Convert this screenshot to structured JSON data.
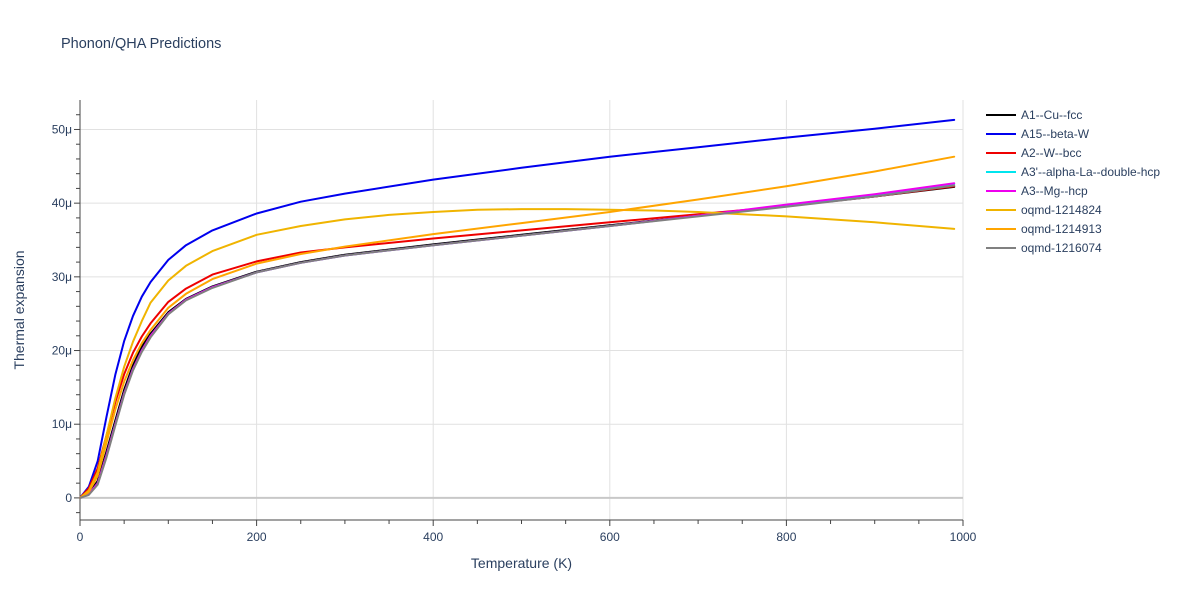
{
  "chart_data": {
    "type": "line",
    "title": "Phonon/QHA Predictions",
    "xlabel": "Temperature (K)",
    "ylabel": "Thermal expansion",
    "xlim": [
      0,
      1000
    ],
    "ylim": [
      -3e-06,
      5.4e-05
    ],
    "x_ticks": [
      0,
      200,
      400,
      600,
      800,
      1000
    ],
    "x_tick_labels": [
      "0",
      "200",
      "400",
      "600",
      "800",
      "1000"
    ],
    "y_ticks": [
      0,
      1e-05,
      2e-05,
      3e-05,
      4e-05,
      5e-05
    ],
    "y_tick_labels": [
      "0",
      "10μ",
      "20μ",
      "30μ",
      "40μ",
      "50μ"
    ],
    "grid": true,
    "legend_position": "right",
    "series": [
      {
        "name": "A1--Cu--fcc",
        "color": "#000000",
        "x": [
          0,
          10,
          20,
          30,
          40,
          50,
          60,
          70,
          80,
          100,
          120,
          150,
          200,
          250,
          300,
          400,
          500,
          600,
          700,
          800,
          900,
          990
        ],
        "y": [
          0,
          6e-07,
          2.3e-06,
          6.3e-06,
          1.05e-05,
          1.47e-05,
          1.8e-05,
          2.05e-05,
          2.23e-05,
          2.52e-05,
          2.7e-05,
          2.87e-05,
          3.07e-05,
          3.2e-05,
          3.3e-05,
          3.44e-05,
          3.57e-05,
          3.7e-05,
          3.83e-05,
          3.96e-05,
          4.09e-05,
          4.22e-05
        ]
      },
      {
        "name": "A15--beta-W",
        "color": "#0000ee",
        "x": [
          0,
          10,
          20,
          30,
          40,
          50,
          60,
          70,
          80,
          100,
          120,
          150,
          200,
          250,
          300,
          400,
          500,
          600,
          700,
          800,
          900,
          990
        ],
        "y": [
          0,
          1.5e-06,
          5e-06,
          1.1e-05,
          1.67e-05,
          2.13e-05,
          2.47e-05,
          2.73e-05,
          2.93e-05,
          3.23e-05,
          3.43e-05,
          3.63e-05,
          3.86e-05,
          4.02e-05,
          4.13e-05,
          4.32e-05,
          4.48e-05,
          4.63e-05,
          4.76e-05,
          4.89e-05,
          5.01e-05,
          5.13e-05
        ]
      },
      {
        "name": "A2--W--bcc",
        "color": "#ee0000",
        "x": [
          0,
          10,
          20,
          30,
          40,
          50,
          60,
          70,
          80,
          100,
          120,
          150,
          200,
          250,
          300,
          400,
          500,
          600,
          700,
          800,
          900,
          990
        ],
        "y": [
          0,
          1.3e-06,
          4e-06,
          8.5e-06,
          1.3e-05,
          1.68e-05,
          1.97e-05,
          2.19e-05,
          2.37e-05,
          2.66e-05,
          2.84e-05,
          3.03e-05,
          3.21e-05,
          3.33e-05,
          3.4e-05,
          3.52e-05,
          3.63e-05,
          3.74e-05,
          3.85e-05,
          3.96e-05,
          4.09e-05,
          4.23e-05
        ]
      },
      {
        "name": "A3'--alpha-La--double-hcp",
        "color": "#00e5ee",
        "x": [
          0,
          10,
          20,
          30,
          40,
          50,
          60,
          70,
          80,
          100,
          120,
          150,
          200,
          250,
          300,
          400,
          500,
          600,
          700,
          800,
          900,
          990
        ],
        "y": [
          0,
          5e-07,
          2e-06,
          5.8e-06,
          1e-05,
          1.42e-05,
          1.75e-05,
          2e-05,
          2.2e-05,
          2.5e-05,
          2.69e-05,
          2.86e-05,
          3.06e-05,
          3.19e-05,
          3.29e-05,
          3.43e-05,
          3.56e-05,
          3.69e-05,
          3.83e-05,
          3.97e-05,
          4.11e-05,
          4.26e-05
        ]
      },
      {
        "name": "A3--Mg--hcp",
        "color": "#ee00ee",
        "x": [
          0,
          10,
          20,
          30,
          40,
          50,
          60,
          70,
          80,
          100,
          120,
          150,
          200,
          250,
          300,
          400,
          500,
          600,
          700,
          800,
          900,
          990
        ],
        "y": [
          0,
          5e-07,
          2e-06,
          5.8e-06,
          1e-05,
          1.42e-05,
          1.75e-05,
          2e-05,
          2.2e-05,
          2.5e-05,
          2.69e-05,
          2.86e-05,
          3.06e-05,
          3.19e-05,
          3.29e-05,
          3.43e-05,
          3.56e-05,
          3.69e-05,
          3.83e-05,
          3.98e-05,
          4.12e-05,
          4.27e-05
        ]
      },
      {
        "name": "oqmd-1214824",
        "color": "#f0b400",
        "x": [
          0,
          10,
          20,
          30,
          40,
          50,
          60,
          70,
          80,
          100,
          120,
          150,
          200,
          250,
          300,
          350,
          400,
          450,
          500,
          550,
          600,
          650,
          700,
          750,
          800,
          900,
          990
        ],
        "y": [
          0,
          1e-06,
          3.5e-06,
          8.5e-06,
          1.35e-05,
          1.78e-05,
          2.12e-05,
          2.4e-05,
          2.65e-05,
          2.95e-05,
          3.15e-05,
          3.35e-05,
          3.57e-05,
          3.69e-05,
          3.78e-05,
          3.84e-05,
          3.88e-05,
          3.91e-05,
          3.92e-05,
          3.92e-05,
          3.91e-05,
          3.9e-05,
          3.88e-05,
          3.85e-05,
          3.82e-05,
          3.74e-05,
          3.65e-05
        ]
      },
      {
        "name": "oqmd-1214913",
        "color": "#ffa500",
        "x": [
          0,
          10,
          20,
          30,
          40,
          50,
          60,
          70,
          80,
          100,
          120,
          150,
          200,
          250,
          300,
          400,
          500,
          600,
          700,
          800,
          900,
          990
        ],
        "y": [
          0,
          8e-07,
          3e-06,
          7.5e-06,
          1.2e-05,
          1.58e-05,
          1.87e-05,
          2.1e-05,
          2.28e-05,
          2.58e-05,
          2.77e-05,
          2.97e-05,
          3.18e-05,
          3.31e-05,
          3.41e-05,
          3.58e-05,
          3.73e-05,
          3.88e-05,
          4.05e-05,
          4.23e-05,
          4.43e-05,
          4.63e-05
        ]
      },
      {
        "name": "oqmd-1216074",
        "color": "#808080",
        "x": [
          0,
          10,
          20,
          30,
          40,
          50,
          60,
          70,
          80,
          100,
          120,
          150,
          200,
          250,
          300,
          400,
          500,
          600,
          700,
          800,
          900,
          990
        ],
        "y": [
          0,
          4e-07,
          1.8e-06,
          5.5e-06,
          9.8e-06,
          1.4e-05,
          1.73e-05,
          1.98e-05,
          2.18e-05,
          2.49e-05,
          2.68e-05,
          2.85e-05,
          3.06e-05,
          3.19e-05,
          3.29e-05,
          3.43e-05,
          3.56e-05,
          3.69e-05,
          3.82e-05,
          3.95e-05,
          4.09e-05,
          4.24e-05
        ]
      }
    ]
  }
}
